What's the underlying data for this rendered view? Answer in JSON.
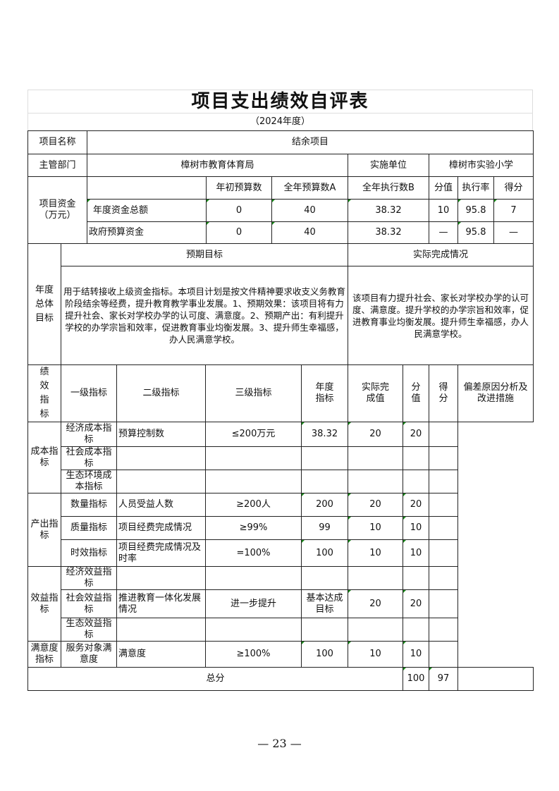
{
  "title": "项目支出绩效自评表",
  "subtitle": "（2024年度）",
  "info": {
    "name_label": "项目名称",
    "name": "结余项目",
    "dept_label": "主管部门",
    "dept": "樟树市教育体育局",
    "unit_label": "实施单位",
    "unit": "樟树市实验小学"
  },
  "funds": {
    "label": "项目资金（万元）",
    "headers": [
      "年初预算数",
      "全年预算数A",
      "全年执行数B",
      "分值",
      "执行率",
      "得分"
    ],
    "rows": [
      {
        "label": "年度资金总额",
        "values": [
          "0",
          "40",
          "38.32",
          "10",
          "95.8",
          "7"
        ]
      },
      {
        "label": "政府预算资金",
        "values": [
          "0",
          "40",
          "38.32",
          "—",
          "95.8",
          "—"
        ]
      }
    ]
  },
  "goals": {
    "label": "年度总体目标",
    "expected_header": "预期目标",
    "actual_header": "实际完成情况",
    "expected": "用于结转接收上级资金指标。本项目计划是按文件精神要求收支义务教育阶段结余等经费，提升教育教学事业发展。1、预期效果：该项目将有力提升社会、家长对学校办学的认可度、满意度。2、预期产出：有利提升学校的办学宗旨和效率，促进教育事业均衡发展。3、提升师生幸福感，办人民满意学校。",
    "actual": "该项目有力提升社会、家长对学校办学的认可度、满意度。提升学校的办学宗旨和效率，促进教育事业均衡发展。提升师生幸福感，办人民满意学校。"
  },
  "indicators": {
    "label": "绩效指标",
    "headers": [
      "一级指标",
      "二级指标",
      "三级指标",
      "年度指标",
      "实际完成值",
      "分值",
      "得分",
      "偏差原因分析及改进措施"
    ],
    "groups": {
      "cost": "成本指标",
      "output": "产出指标",
      "benefit": "效益指标",
      "satisfaction": "满意度指标"
    },
    "rows": [
      [
        "经济成本指标",
        "预算控制数",
        "≤200万元",
        "38.32",
        "20",
        "20",
        ""
      ],
      [
        "社会成本指标",
        "",
        "",
        "",
        "",
        "",
        ""
      ],
      [
        "生态环境成本指标",
        "",
        "",
        "",
        "",
        "",
        ""
      ],
      [
        "数量指标",
        "人员受益人数",
        "≥200人",
        "200",
        "20",
        "20",
        ""
      ],
      [
        "质量指标",
        "项目经费完成情况",
        "≥99%",
        "99",
        "10",
        "10",
        ""
      ],
      [
        "时效指标",
        "项目经费完成情况及时率",
        "=100%",
        "100",
        "10",
        "10",
        ""
      ],
      [
        "经济效益指标",
        "",
        "",
        "",
        "",
        "",
        ""
      ],
      [
        "社会效益指标",
        "推进教育一体化发展情况",
        "进一步提升",
        "基本达成目标",
        "20",
        "20",
        ""
      ],
      [
        "生态效益指标",
        "",
        "",
        "",
        "",
        "",
        ""
      ],
      [
        "服务对象满意度",
        "满意度",
        "≥100%",
        "100",
        "10",
        "10",
        ""
      ]
    ],
    "total_label": "总分",
    "total_points": "100",
    "total_score": "97"
  },
  "page_number": "— 23 —"
}
